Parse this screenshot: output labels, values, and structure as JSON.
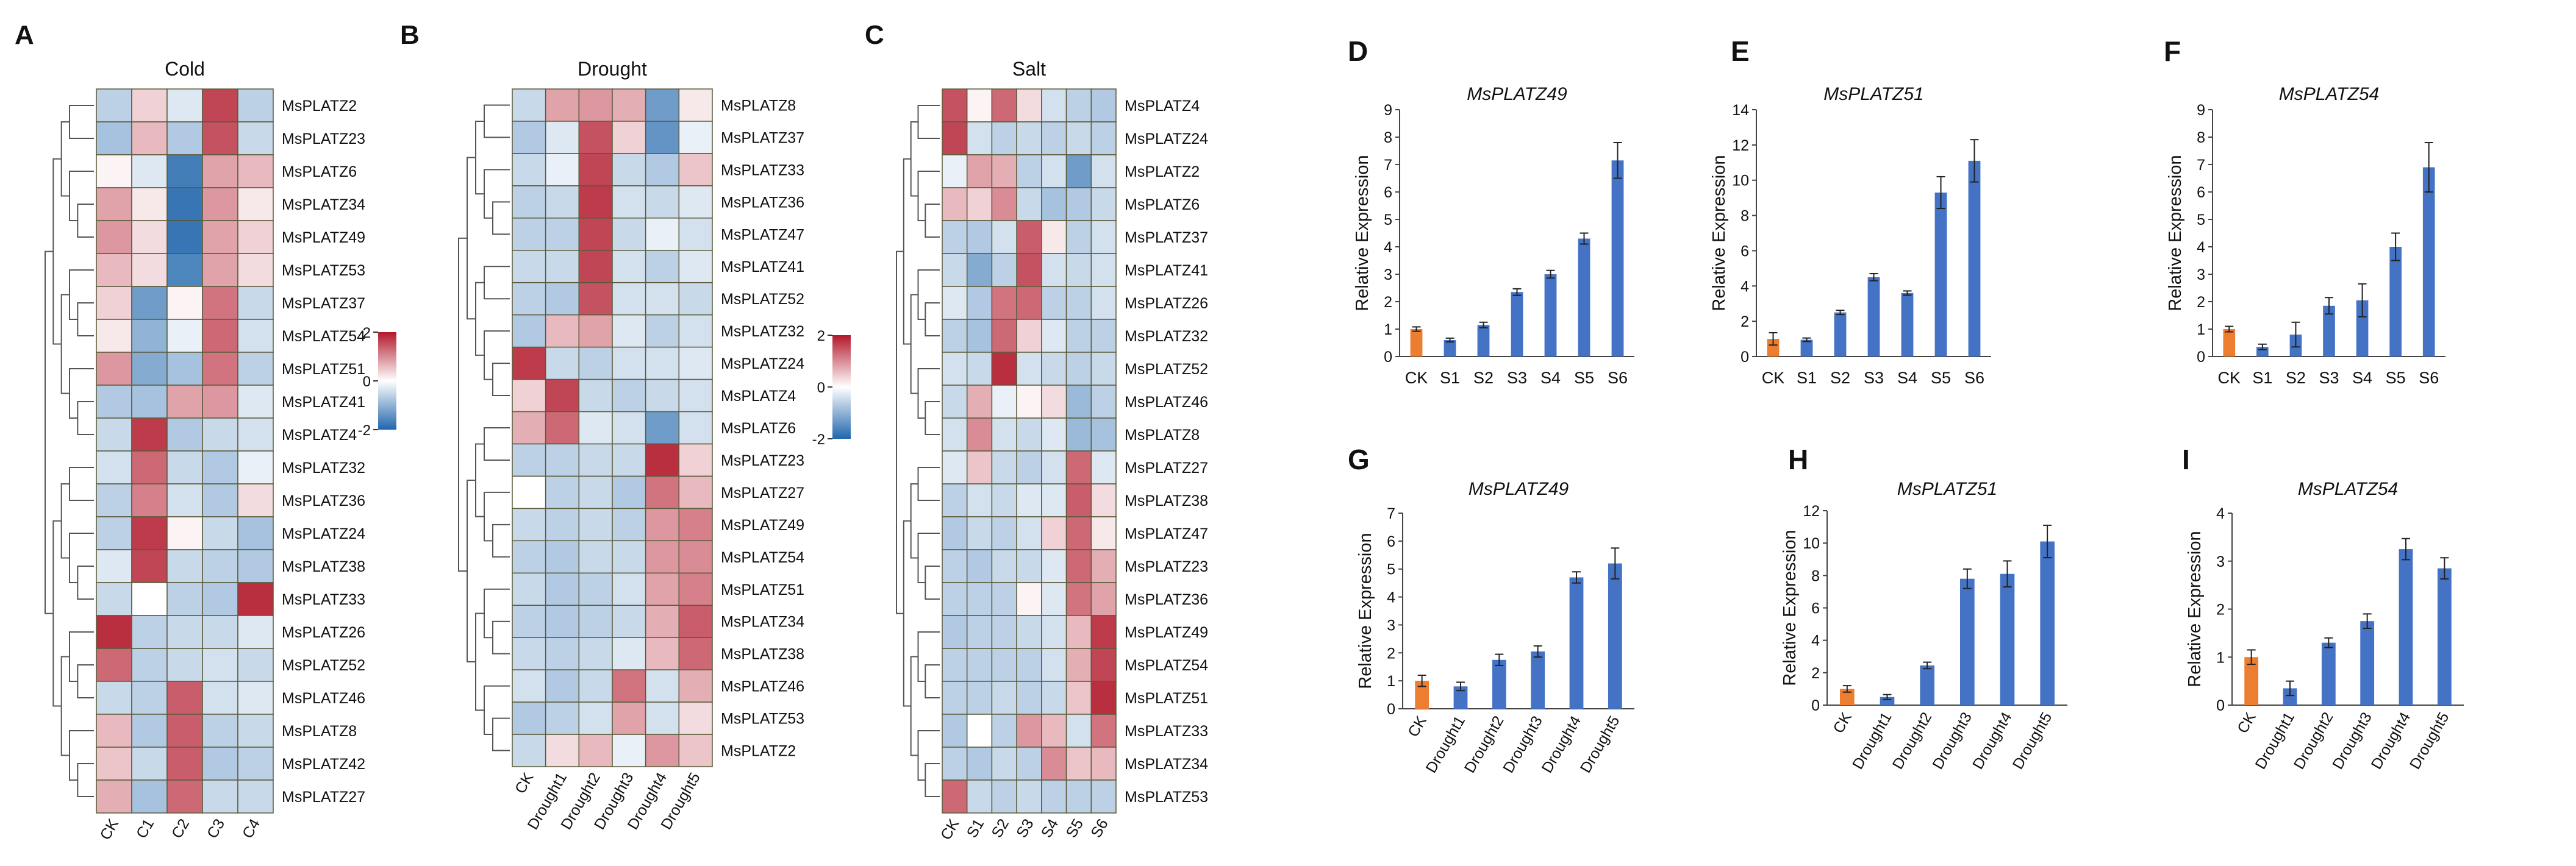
{
  "colors": {
    "high": "#b2182b",
    "mid": "#ffffff",
    "low": "#2166ac",
    "ck_bar": "#ed7d31",
    "treat_bar": "#4472c4",
    "cell_border": "#5a5a3a"
  },
  "chart_data": [
    {
      "id": "A",
      "type": "heatmap",
      "panel_label": "A",
      "title": "Cold",
      "columns": [
        "CK",
        "C1",
        "C2",
        "C3",
        "C4"
      ],
      "rows": [
        "MsPLATZ2",
        "MsPLATZ23",
        "MsPLATZ6",
        "MsPLATZ34",
        "MsPLATZ49",
        "MsPLATZ53",
        "MsPLATZ37",
        "MsPLATZ54",
        "MsPLATZ51",
        "MsPLATZ41",
        "MsPLATZ4",
        "MsPLATZ32",
        "MsPLATZ36",
        "MsPLATZ24",
        "MsPLATZ38",
        "MsPLATZ33",
        "MsPLATZ26",
        "MsPLATZ52",
        "MsPLATZ46",
        "MsPLATZ8",
        "MsPLATZ42",
        "MsPLATZ27"
      ],
      "values": [
        [
          -0.6,
          0.4,
          -0.3,
          1.6,
          -0.6
        ],
        [
          -0.8,
          0.6,
          -0.7,
          1.5,
          -0.5
        ],
        [
          0.1,
          -0.3,
          -1.7,
          0.8,
          0.6
        ],
        [
          0.8,
          0.2,
          -1.8,
          0.9,
          0.2
        ],
        [
          0.9,
          0.3,
          -1.8,
          0.8,
          0.4
        ],
        [
          0.6,
          0.3,
          -1.6,
          0.8,
          0.3
        ],
        [
          0.4,
          -1.3,
          0.1,
          1.2,
          -0.5
        ],
        [
          0.2,
          -1.0,
          -0.2,
          1.3,
          -0.4
        ],
        [
          0.9,
          -1.1,
          -0.8,
          1.2,
          -0.6
        ],
        [
          -0.7,
          -0.8,
          0.8,
          0.9,
          -0.3
        ],
        [
          -0.5,
          1.7,
          -0.7,
          -0.5,
          -0.4
        ],
        [
          -0.4,
          1.3,
          -0.5,
          -0.7,
          -0.2
        ],
        [
          -0.6,
          1.1,
          -0.4,
          -0.7,
          0.3
        ],
        [
          -0.6,
          1.7,
          0.1,
          -0.5,
          -0.8
        ],
        [
          -0.3,
          1.6,
          -0.5,
          -0.6,
          -0.7
        ],
        [
          -0.5,
          0.0,
          -0.6,
          -0.7,
          1.8
        ],
        [
          1.8,
          -0.6,
          -0.5,
          -0.5,
          -0.3
        ],
        [
          1.3,
          -0.6,
          -0.5,
          -0.4,
          -0.5
        ],
        [
          -0.5,
          -0.6,
          1.4,
          -0.4,
          -0.3
        ],
        [
          0.6,
          -0.7,
          1.4,
          -0.6,
          -0.5
        ],
        [
          0.5,
          -0.5,
          1.4,
          -0.7,
          -0.6
        ],
        [
          0.7,
          -0.8,
          1.3,
          -0.5,
          -0.5
        ]
      ],
      "scale_ticks": [
        "2",
        "0",
        "-2"
      ],
      "range": [
        -2,
        2
      ]
    },
    {
      "id": "B",
      "type": "heatmap",
      "panel_label": "B",
      "title": "Drought",
      "columns": [
        "CK",
        "Drought1",
        "Drought2",
        "Drought3",
        "Drought4",
        "Drought5"
      ],
      "rows": [
        "MsPLATZ8",
        "MsPLATZ37",
        "MsPLATZ33",
        "MsPLATZ36",
        "MsPLATZ47",
        "MsPLATZ41",
        "MsPLATZ52",
        "MsPLATZ32",
        "MsPLATZ24",
        "MsPLATZ4",
        "MsPLATZ6",
        "MsPLATZ23",
        "MsPLATZ27",
        "MsPLATZ49",
        "MsPLATZ54",
        "MsPLATZ51",
        "MsPLATZ34",
        "MsPLATZ38",
        "MsPLATZ46",
        "MsPLATZ53",
        "MsPLATZ2"
      ],
      "values": [
        [
          -0.5,
          0.8,
          0.9,
          0.7,
          -1.3,
          0.2
        ],
        [
          -0.7,
          -0.3,
          1.5,
          0.4,
          -1.4,
          -0.2
        ],
        [
          -0.5,
          -0.2,
          1.6,
          -0.5,
          -0.7,
          0.5
        ],
        [
          -0.6,
          -0.5,
          1.7,
          -0.4,
          -0.5,
          -0.3
        ],
        [
          -0.6,
          -0.6,
          1.6,
          -0.5,
          -0.2,
          -0.4
        ],
        [
          -0.5,
          -0.5,
          1.6,
          -0.4,
          -0.6,
          -0.3
        ],
        [
          -0.6,
          -0.7,
          1.5,
          -0.4,
          -0.4,
          -0.5
        ],
        [
          -0.7,
          0.6,
          0.8,
          -0.3,
          -0.6,
          -0.4
        ],
        [
          1.7,
          -0.5,
          -0.6,
          -0.4,
          -0.4,
          -0.3
        ],
        [
          0.4,
          1.6,
          -0.5,
          -0.6,
          -0.5,
          -0.4
        ],
        [
          0.7,
          1.3,
          -0.3,
          -0.4,
          -1.3,
          -0.4
        ],
        [
          -0.6,
          -0.6,
          -0.5,
          -0.5,
          1.8,
          0.4
        ],
        [
          0.0,
          -0.6,
          -0.5,
          -0.7,
          1.2,
          0.6
        ],
        [
          -0.5,
          -0.6,
          -0.5,
          -0.6,
          0.9,
          1.1
        ],
        [
          -0.6,
          -0.7,
          -0.5,
          -0.5,
          0.9,
          1.0
        ],
        [
          -0.5,
          -0.7,
          -0.6,
          -0.4,
          0.8,
          1.1
        ],
        [
          -0.6,
          -0.7,
          -0.6,
          -0.5,
          0.7,
          1.4
        ],
        [
          -0.5,
          -0.6,
          -0.5,
          -0.3,
          0.6,
          1.3
        ],
        [
          -0.4,
          -0.7,
          -0.5,
          1.2,
          -0.4,
          0.7
        ],
        [
          -0.7,
          -0.6,
          -0.4,
          0.8,
          -0.4,
          0.3
        ],
        [
          -0.5,
          0.3,
          0.6,
          -0.2,
          0.9,
          0.5
        ]
      ],
      "scale_ticks": [
        "2",
        "0",
        "-2"
      ],
      "range": [
        -2,
        2
      ]
    },
    {
      "id": "C",
      "type": "heatmap",
      "panel_label": "C",
      "title": "Salt",
      "columns": [
        "CK",
        "S1",
        "S2",
        "S3",
        "S4",
        "S5",
        "S6"
      ],
      "rows": [
        "MsPLATZ4",
        "MsPLATZ24",
        "MsPLATZ2",
        "MsPLATZ6",
        "MsPLATZ37",
        "MsPLATZ41",
        "MsPLATZ26",
        "MsPLATZ32",
        "MsPLATZ52",
        "MsPLATZ46",
        "MsPLATZ8",
        "MsPLATZ27",
        "MsPLATZ38",
        "MsPLATZ47",
        "MsPLATZ23",
        "MsPLATZ36",
        "MsPLATZ49",
        "MsPLATZ54",
        "MsPLATZ51",
        "MsPLATZ33",
        "MsPLATZ34",
        "MsPLATZ53"
      ],
      "values": [
        [
          1.5,
          0.1,
          1.3,
          0.3,
          -0.4,
          -0.6,
          -0.7
        ],
        [
          1.6,
          -0.4,
          -0.6,
          -0.5,
          -0.6,
          -0.5,
          -0.6
        ],
        [
          -0.2,
          0.8,
          0.7,
          -0.6,
          -0.4,
          -1.3,
          -0.4
        ],
        [
          0.6,
          0.4,
          1.0,
          -0.5,
          -0.8,
          -0.7,
          -0.5
        ],
        [
          -0.6,
          -0.7,
          -0.4,
          1.4,
          0.2,
          -0.6,
          -0.4
        ],
        [
          -0.5,
          -1.1,
          -0.6,
          1.5,
          -0.4,
          -0.5,
          -0.4
        ],
        [
          -0.3,
          -0.7,
          1.2,
          1.3,
          -0.6,
          -0.6,
          -0.4
        ],
        [
          -0.6,
          -0.8,
          1.3,
          0.4,
          -0.3,
          -0.6,
          -0.6
        ],
        [
          -0.4,
          -0.5,
          1.8,
          -0.4,
          -0.5,
          -0.6,
          -0.5
        ],
        [
          -0.5,
          0.7,
          -0.2,
          0.1,
          0.3,
          -0.9,
          -0.6
        ],
        [
          -0.4,
          1.0,
          -0.4,
          -0.5,
          -0.3,
          -0.9,
          -0.8
        ],
        [
          -0.3,
          0.5,
          -0.5,
          -0.6,
          -0.4,
          1.3,
          -0.3
        ],
        [
          -0.6,
          -0.4,
          -0.5,
          -0.3,
          -0.3,
          1.4,
          0.3
        ],
        [
          -0.7,
          -0.5,
          -0.6,
          -0.4,
          0.4,
          1.3,
          0.2
        ],
        [
          -0.6,
          -0.7,
          -0.5,
          -0.5,
          -0.3,
          1.3,
          0.7
        ],
        [
          -0.6,
          -0.6,
          -0.6,
          0.1,
          -0.3,
          1.2,
          0.8
        ],
        [
          -0.7,
          -0.6,
          -0.6,
          -0.5,
          -0.4,
          0.6,
          1.7
        ],
        [
          -0.6,
          -0.6,
          -0.6,
          -0.6,
          -0.4,
          0.7,
          1.6
        ],
        [
          -0.6,
          -0.6,
          -0.5,
          -0.6,
          -0.5,
          0.5,
          1.8
        ],
        [
          -0.7,
          0.0,
          -0.6,
          0.9,
          0.6,
          -0.4,
          1.2
        ],
        [
          -0.6,
          -0.7,
          -0.5,
          -0.6,
          1.0,
          0.5,
          0.6
        ],
        [
          1.3,
          -0.5,
          -0.6,
          -0.5,
          -0.6,
          -0.6,
          -0.6
        ]
      ],
      "scale_ticks": [
        "2",
        "0",
        "-2"
      ],
      "range": [
        -2,
        2
      ]
    },
    {
      "id": "D",
      "type": "bar",
      "panel_label": "D",
      "title": "MsPLATZ49",
      "ylabel": "Relative Expression",
      "categories": [
        "CK",
        "S1",
        "S2",
        "S3",
        "S4",
        "S5",
        "S6"
      ],
      "values": [
        1.0,
        0.6,
        1.15,
        2.35,
        3.0,
        4.3,
        7.15
      ],
      "errors": [
        0.08,
        0.07,
        0.1,
        0.12,
        0.14,
        0.2,
        0.65
      ],
      "ylim": [
        0,
        9
      ],
      "yticks": [
        0,
        1,
        2,
        3,
        4,
        5,
        6,
        7,
        8,
        9
      ]
    },
    {
      "id": "E",
      "type": "bar",
      "panel_label": "E",
      "title": "MsPLATZ51",
      "ylabel": "Relative Expression",
      "categories": [
        "CK",
        "S1",
        "S2",
        "S3",
        "S4",
        "S5",
        "S6"
      ],
      "values": [
        1.0,
        0.95,
        2.5,
        4.5,
        3.6,
        9.3,
        11.1
      ],
      "errors": [
        0.35,
        0.1,
        0.12,
        0.2,
        0.12,
        0.9,
        1.2
      ],
      "ylim": [
        0,
        14
      ],
      "yticks": [
        0,
        2,
        4,
        6,
        8,
        10,
        12,
        14
      ]
    },
    {
      "id": "F",
      "type": "bar",
      "panel_label": "F",
      "title": "MsPLATZ54",
      "ylabel": "Relative Expression",
      "categories": [
        "CK",
        "S1",
        "S2",
        "S3",
        "S4",
        "S5",
        "S6"
      ],
      "values": [
        1.0,
        0.35,
        0.8,
        1.85,
        2.05,
        4.0,
        6.9
      ],
      "errors": [
        0.1,
        0.1,
        0.45,
        0.3,
        0.6,
        0.5,
        0.9
      ],
      "ylim": [
        0,
        9
      ],
      "yticks": [
        0,
        1,
        2,
        3,
        4,
        5,
        6,
        7,
        8,
        9
      ]
    },
    {
      "id": "G",
      "type": "bar",
      "panel_label": "G",
      "title": "MsPLATZ49",
      "ylabel": "Relative Expression",
      "categories": [
        "CK",
        "Drought1",
        "Drought2",
        "Drought3",
        "Drought4",
        "Drought5"
      ],
      "values": [
        1.0,
        0.8,
        1.75,
        2.05,
        4.7,
        5.2
      ],
      "errors": [
        0.2,
        0.15,
        0.2,
        0.2,
        0.2,
        0.55
      ],
      "ylim": [
        0,
        7
      ],
      "yticks": [
        0,
        1,
        2,
        3,
        4,
        5,
        6,
        7
      ]
    },
    {
      "id": "H",
      "type": "bar",
      "panel_label": "H",
      "title": "MsPLATZ51",
      "ylabel": "Relative Expression",
      "categories": [
        "CK",
        "Drought1",
        "Drought2",
        "Drought3",
        "Drought4",
        "Drought5"
      ],
      "values": [
        1.0,
        0.5,
        2.45,
        7.8,
        8.1,
        10.1
      ],
      "errors": [
        0.2,
        0.15,
        0.2,
        0.6,
        0.8,
        1.0
      ],
      "ylim": [
        0,
        12
      ],
      "yticks": [
        0,
        2,
        4,
        6,
        8,
        10,
        12
      ]
    },
    {
      "id": "I",
      "type": "bar",
      "panel_label": "I",
      "title": "MsPLATZ54",
      "ylabel": "Relative Expression",
      "categories": [
        "CK",
        "Drought1",
        "Drought2",
        "Drought3",
        "Drought4",
        "Drought5"
      ],
      "values": [
        1.0,
        0.35,
        1.3,
        1.75,
        3.25,
        2.85
      ],
      "errors": [
        0.15,
        0.15,
        0.1,
        0.15,
        0.22,
        0.22
      ],
      "ylim": [
        0,
        4
      ],
      "yticks": [
        0,
        1,
        2,
        3,
        4
      ]
    }
  ]
}
